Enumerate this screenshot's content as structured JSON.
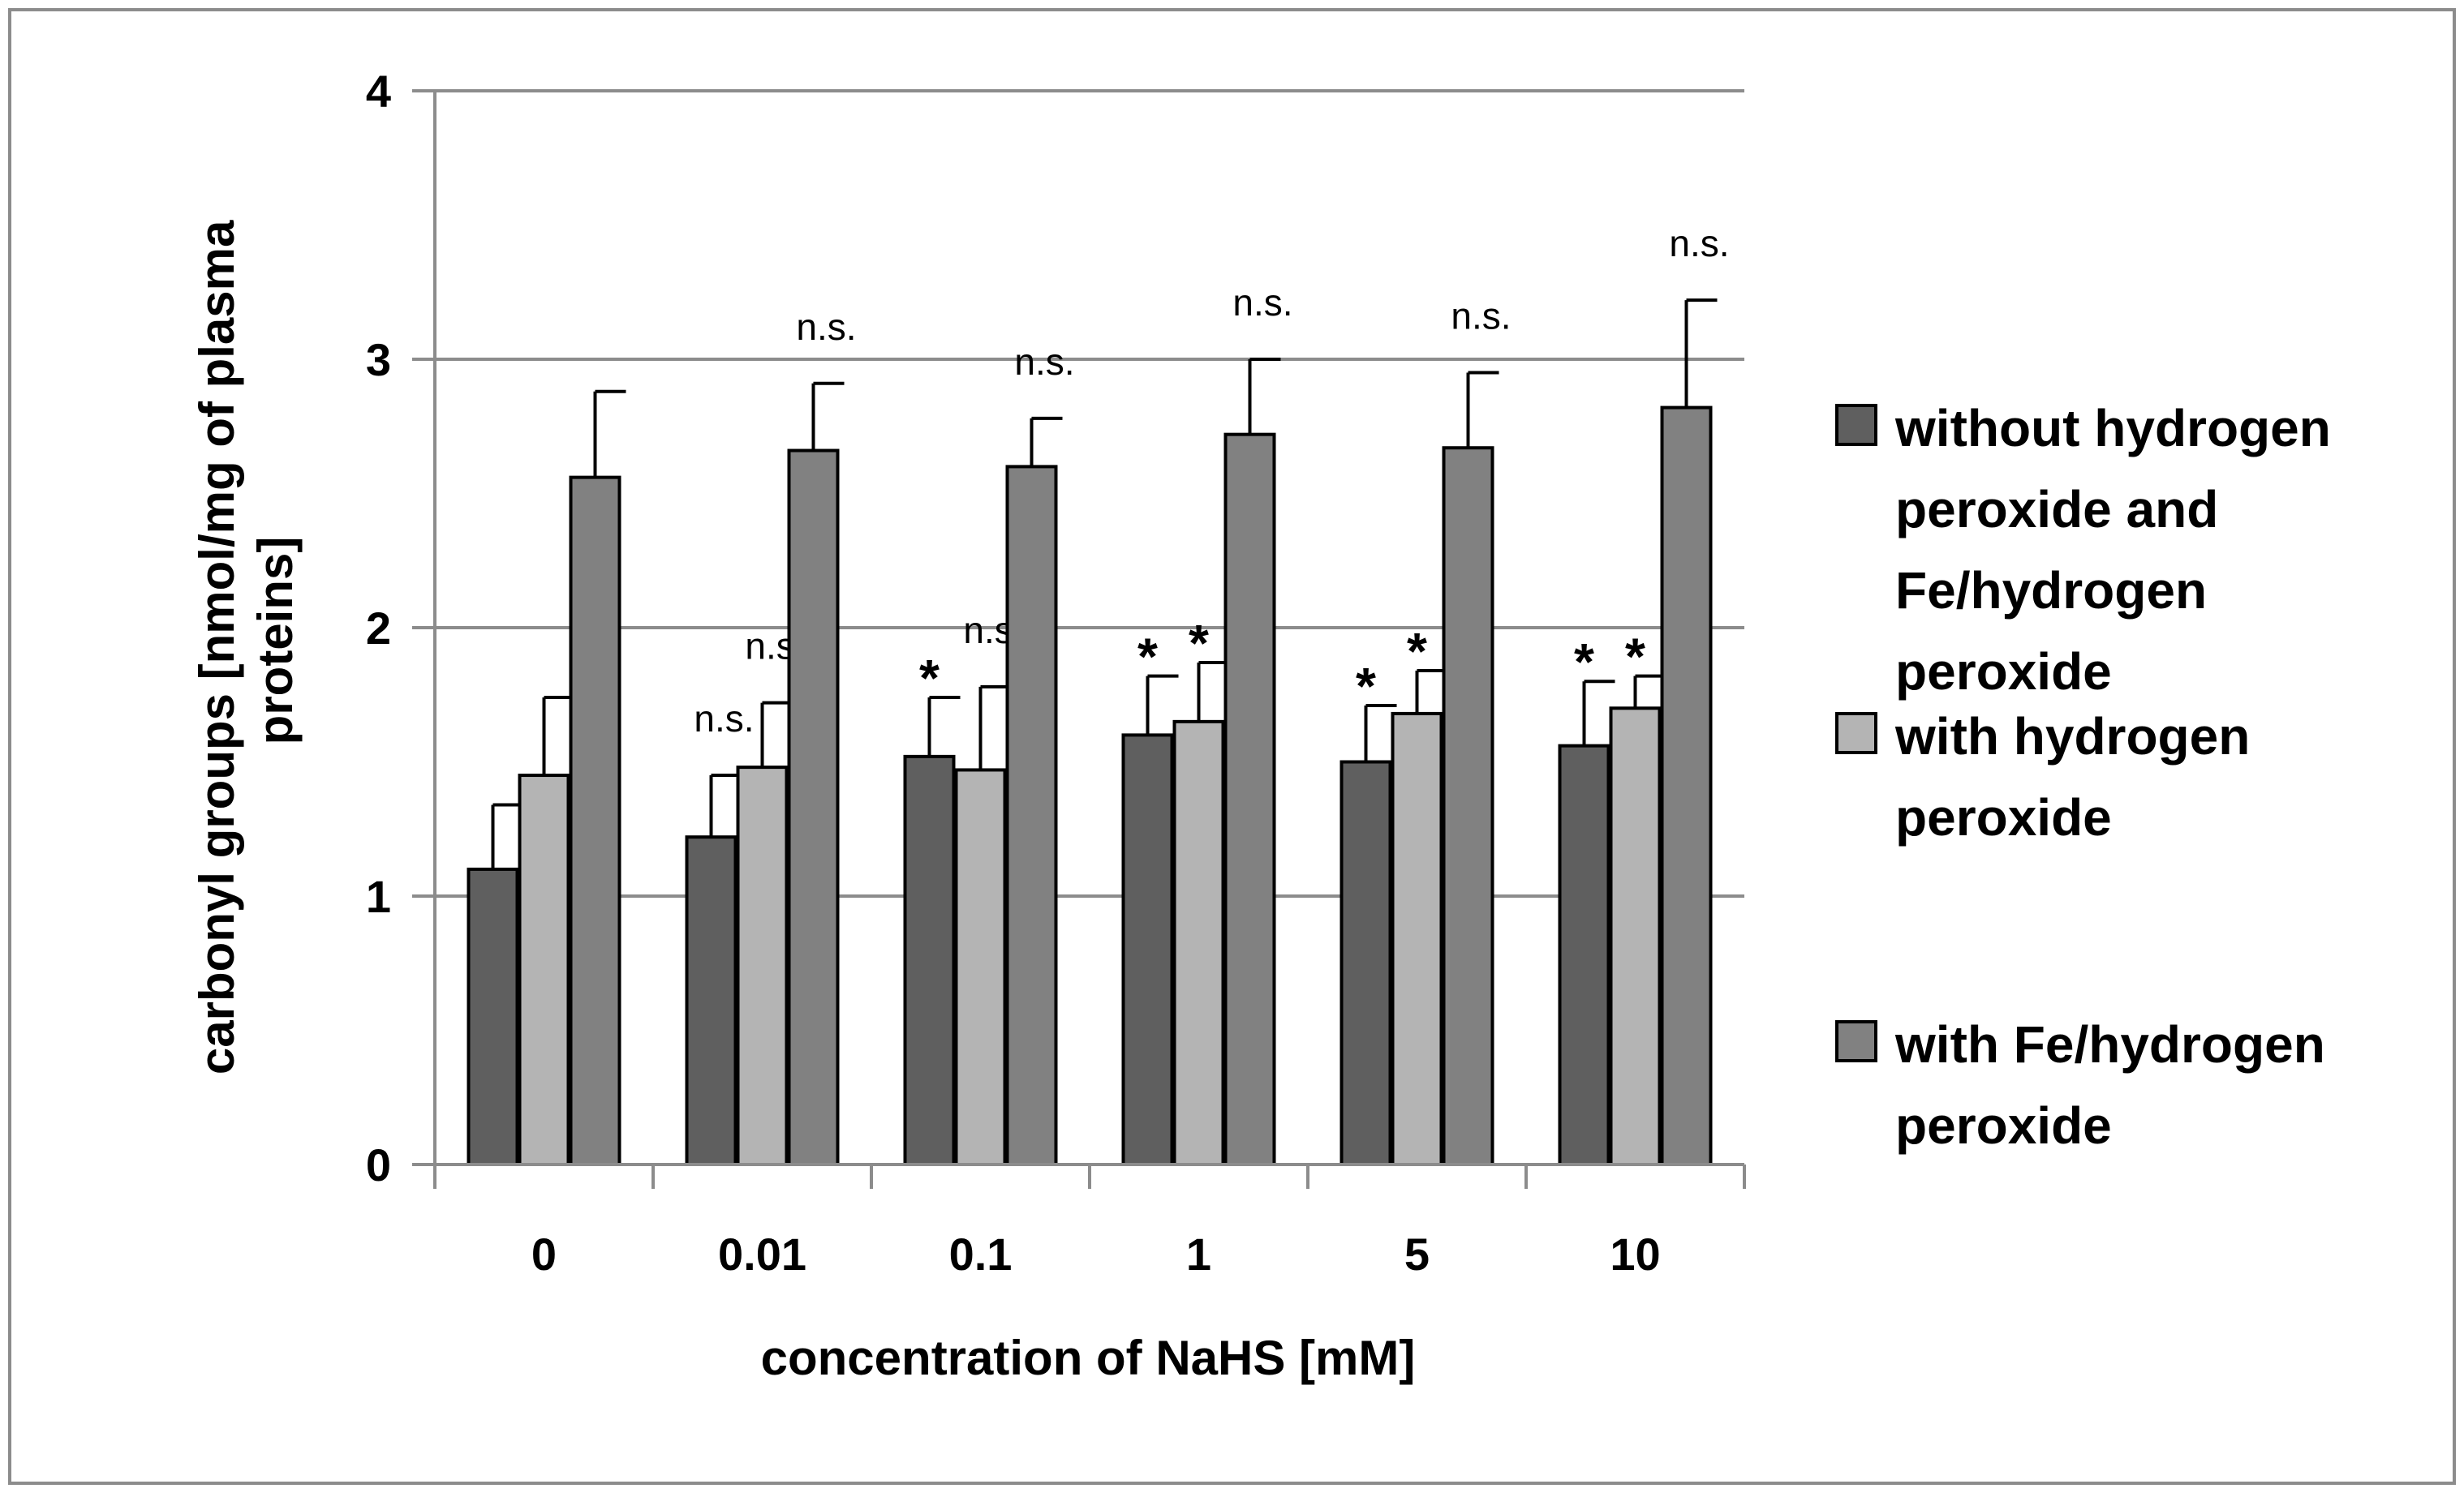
{
  "chart_data": {
    "type": "bar",
    "title": "",
    "xlabel": "concentration of NaHS [mM]",
    "ylabel_lines": [
      "carbonyl groups [nmol/mg of plasma",
      "proteins]"
    ],
    "ylim": [
      0,
      4
    ],
    "yticks": [
      0,
      1,
      2,
      3,
      4
    ],
    "grid": true,
    "categories": [
      "0",
      "0.01",
      "0.1",
      "1",
      "5",
      "10"
    ],
    "series": [
      {
        "name_lines": [
          "without hydrogen",
          "peroxide and",
          "Fe/hydrogen",
          "peroxide"
        ],
        "color": "#5f5f5f",
        "values": [
          1.1,
          1.22,
          1.52,
          1.6,
          1.5,
          1.56
        ],
        "errors": [
          0.24,
          0.23,
          0.22,
          0.22,
          0.21,
          0.24
        ],
        "annotations": [
          "",
          "n.s.",
          "*",
          "*",
          "*",
          "*"
        ]
      },
      {
        "name_lines": [
          "with hydrogen",
          "peroxide"
        ],
        "color": "#b4b4b4",
        "values": [
          1.45,
          1.48,
          1.47,
          1.65,
          1.68,
          1.7
        ],
        "errors": [
          0.29,
          0.24,
          0.31,
          0.22,
          0.16,
          0.12
        ],
        "annotations": [
          "",
          "n.s.",
          "n.s.",
          "*",
          "*",
          "*"
        ]
      },
      {
        "name_lines": [
          "with Fe/hydrogen",
          "peroxide"
        ],
        "color": "#818181",
        "values": [
          2.56,
          2.66,
          2.6,
          2.72,
          2.67,
          2.82
        ],
        "errors": [
          0.32,
          0.25,
          0.18,
          0.28,
          0.28,
          0.4
        ],
        "annotations": [
          "",
          "n.s.",
          "n.s.",
          "n.s.",
          "n.s.",
          "n.s."
        ]
      }
    ],
    "legend_position": "right"
  }
}
